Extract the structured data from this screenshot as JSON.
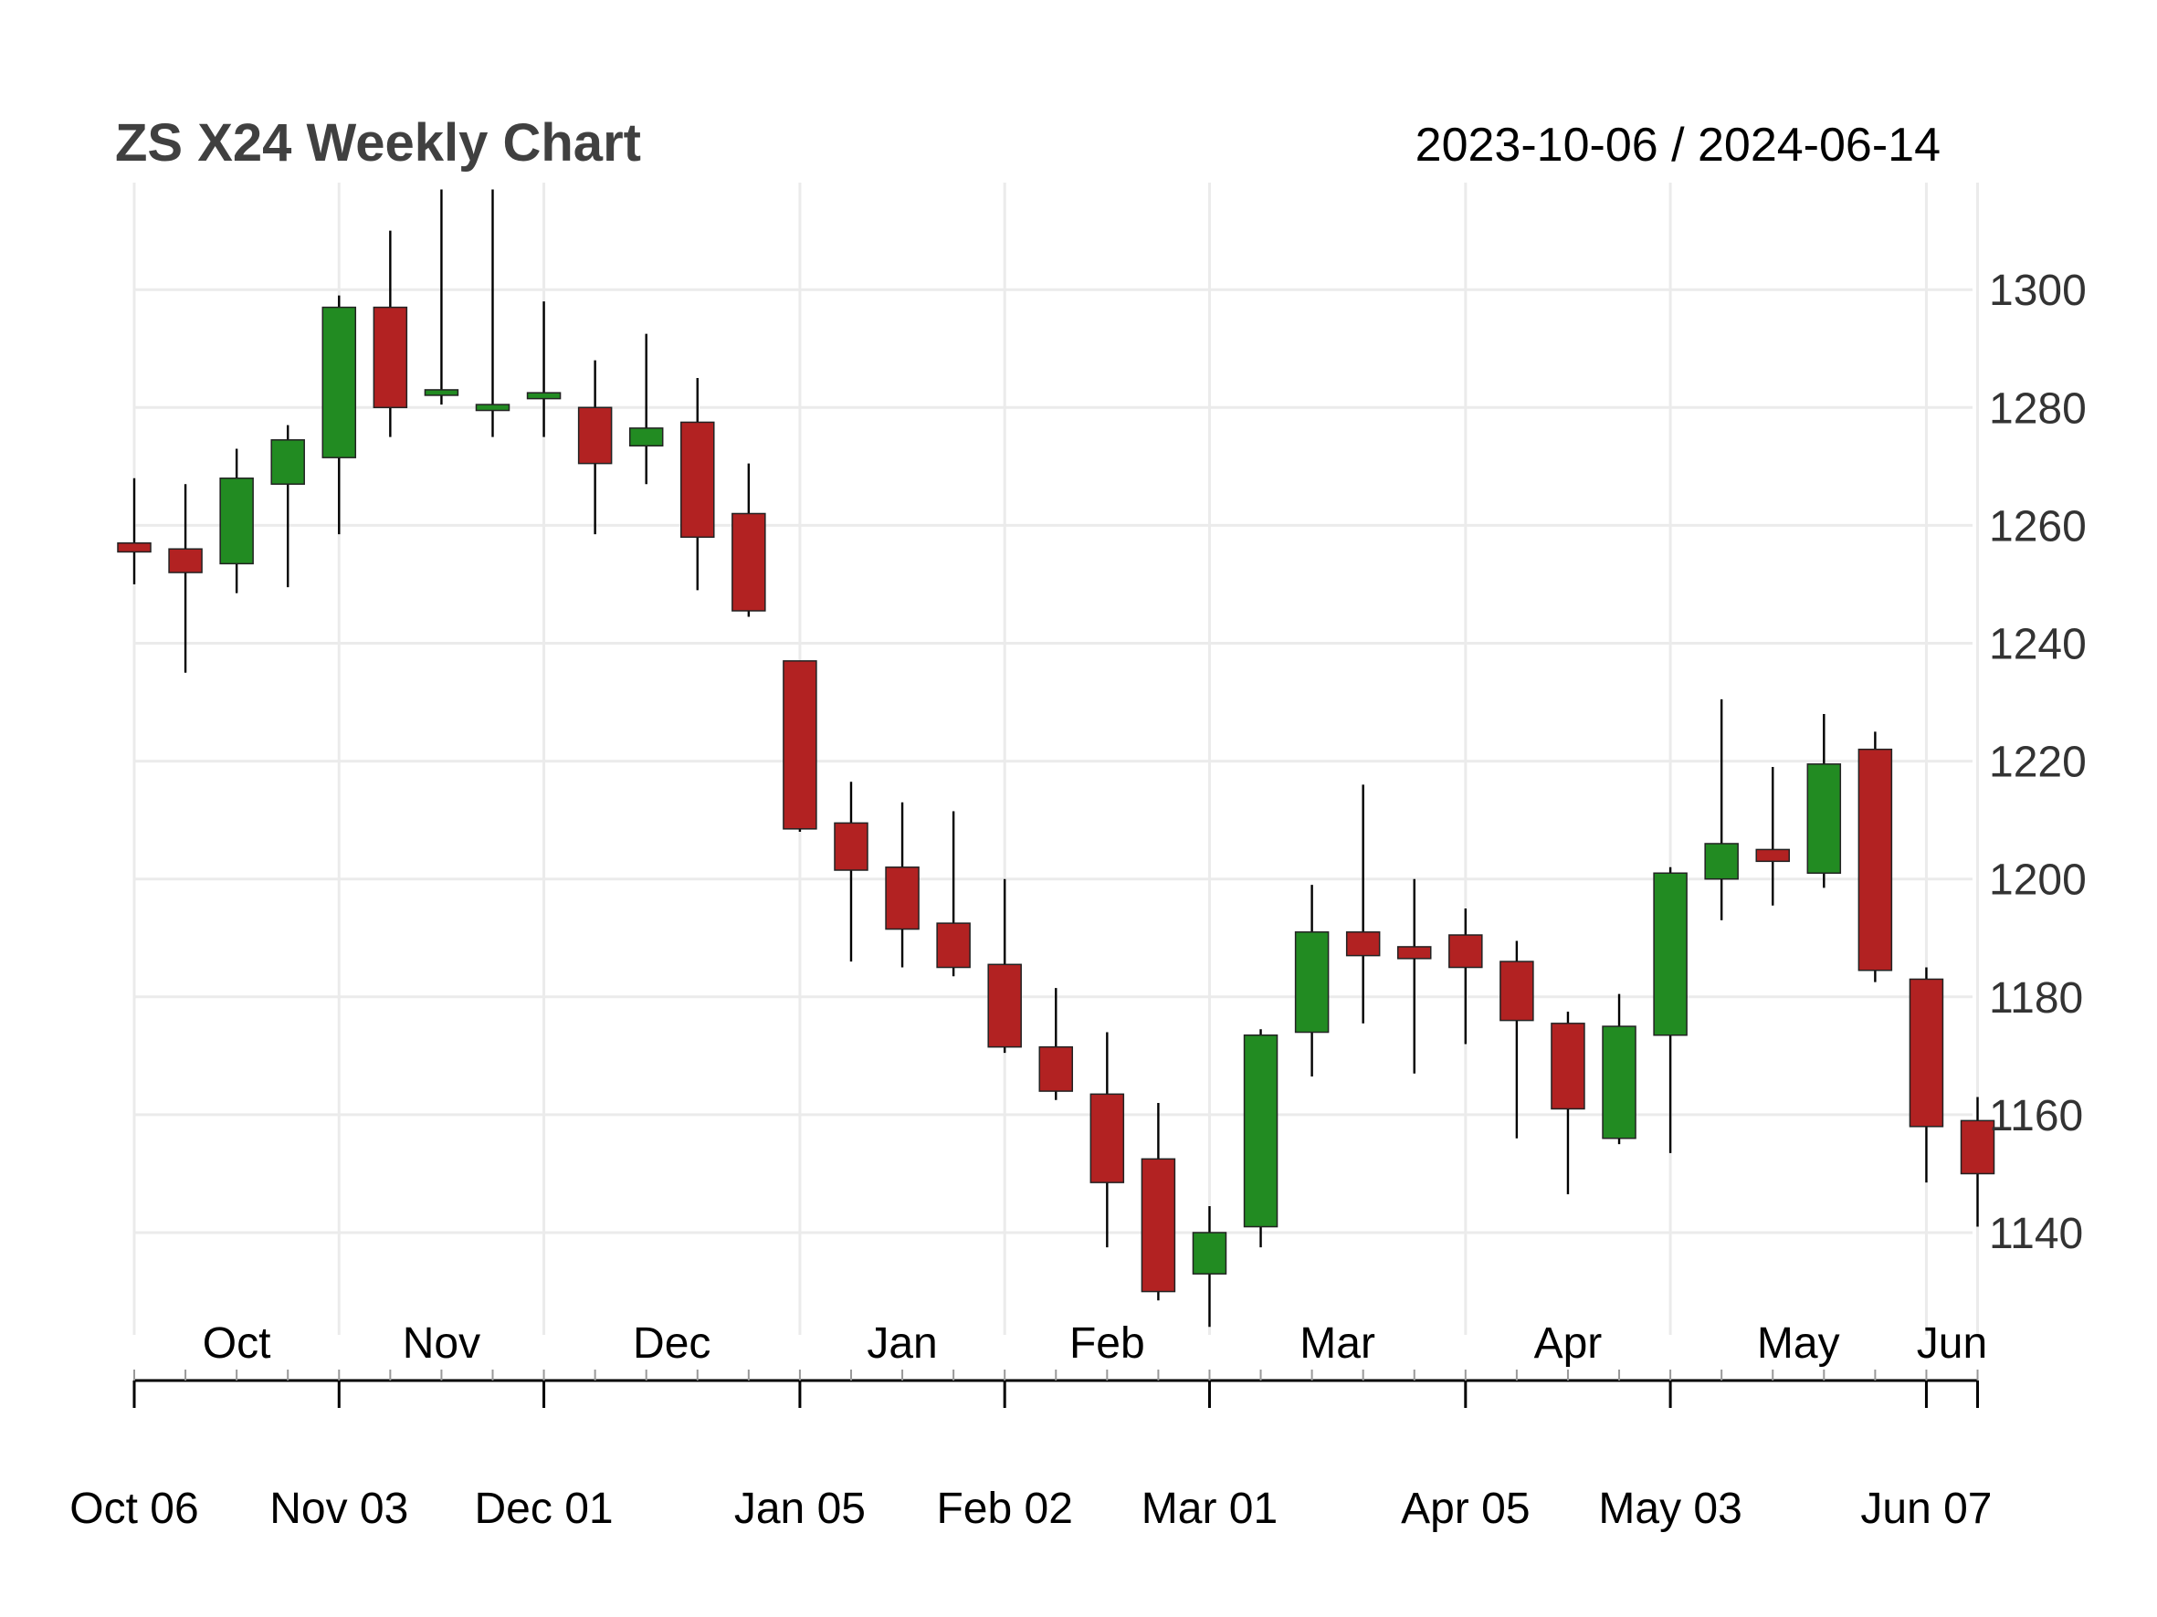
{
  "chart_data": {
    "type": "candlestick",
    "title": "ZS X24 Weekly Chart",
    "date_range": "2023-10-06 / 2024-06-14",
    "ylim": [
      1124,
      1316
    ],
    "y_ticks": [
      1140,
      1160,
      1180,
      1200,
      1220,
      1240,
      1260,
      1280,
      1300
    ],
    "grid": true,
    "colors": {
      "up": "#228B22",
      "down": "#B22222",
      "wick": "#000000",
      "grid": "#EBEBEB",
      "axis": "#000000"
    },
    "month_labels": [
      {
        "label": "Oct",
        "week": 2
      },
      {
        "label": "Nov",
        "week": 6
      },
      {
        "label": "Dec",
        "week": 10.5
      },
      {
        "label": "Jan",
        "week": 15
      },
      {
        "label": "Feb",
        "week": 19
      },
      {
        "label": "Mar",
        "week": 23.5
      },
      {
        "label": "Apr",
        "week": 28
      },
      {
        "label": "May",
        "week": 32.5
      },
      {
        "label": "Jun",
        "week": 35.5
      }
    ],
    "major_ticks": [
      {
        "label": "Oct 06",
        "week": 0
      },
      {
        "label": "Nov 03",
        "week": 4
      },
      {
        "label": "Dec 01",
        "week": 8
      },
      {
        "label": "Jan 05",
        "week": 13
      },
      {
        "label": "Feb 02",
        "week": 17
      },
      {
        "label": "Mar 01",
        "week": 21
      },
      {
        "label": "Apr 05",
        "week": 26
      },
      {
        "label": "May 03",
        "week": 30
      },
      {
        "label": "Jun 07",
        "week": 35
      }
    ],
    "candles": [
      {
        "date": "2023-10-06",
        "open": 1257,
        "high": 1268,
        "low": 1250,
        "close": 1255.5
      },
      {
        "date": "2023-10-13",
        "open": 1256,
        "high": 1267,
        "low": 1235,
        "close": 1252
      },
      {
        "date": "2023-10-20",
        "open": 1253.5,
        "high": 1273,
        "low": 1248.5,
        "close": 1268
      },
      {
        "date": "2023-10-27",
        "open": 1267,
        "high": 1277,
        "low": 1249.5,
        "close": 1274.5
      },
      {
        "date": "2023-11-03",
        "open": 1271.5,
        "high": 1299,
        "low": 1258.5,
        "close": 1297
      },
      {
        "date": "2023-11-10",
        "open": 1297,
        "high": 1310,
        "low": 1275,
        "close": 1280
      },
      {
        "date": "2023-11-17",
        "open": 1282.5,
        "high": 1317,
        "low": 1280.5,
        "close": 1283
      },
      {
        "date": "2023-11-24",
        "open": 1279.5,
        "high": 1317,
        "low": 1275,
        "close": 1280.5
      },
      {
        "date": "2023-12-01",
        "open": 1281.5,
        "high": 1298,
        "low": 1275,
        "close": 1282.5
      },
      {
        "date": "2023-12-08",
        "open": 1280,
        "high": 1288,
        "low": 1258.5,
        "close": 1270.5
      },
      {
        "date": "2023-12-15",
        "open": 1273.5,
        "high": 1292.5,
        "low": 1267,
        "close": 1276.5
      },
      {
        "date": "2023-12-22",
        "open": 1277.5,
        "high": 1285,
        "low": 1249,
        "close": 1258
      },
      {
        "date": "2023-12-29",
        "open": 1262,
        "high": 1270.5,
        "low": 1244.5,
        "close": 1245.5
      },
      {
        "date": "2024-01-05",
        "open": 1237,
        "high": 1237,
        "low": 1208,
        "close": 1208.5
      },
      {
        "date": "2024-01-12",
        "open": 1209.5,
        "high": 1216.5,
        "low": 1186,
        "close": 1201.5
      },
      {
        "date": "2024-01-19",
        "open": 1202,
        "high": 1213,
        "low": 1185,
        "close": 1191.5
      },
      {
        "date": "2024-01-26",
        "open": 1192.5,
        "high": 1211.5,
        "low": 1183.5,
        "close": 1185
      },
      {
        "date": "2024-02-02",
        "open": 1185.5,
        "high": 1200,
        "low": 1170.5,
        "close": 1171.5
      },
      {
        "date": "2024-02-09",
        "open": 1171.5,
        "high": 1181.5,
        "low": 1162.5,
        "close": 1164
      },
      {
        "date": "2024-02-16",
        "open": 1163.5,
        "high": 1174,
        "low": 1137.5,
        "close": 1148.5
      },
      {
        "date": "2024-02-23",
        "open": 1152.5,
        "high": 1162,
        "low": 1128.5,
        "close": 1130
      },
      {
        "date": "2024-03-01",
        "open": 1133,
        "high": 1144.5,
        "low": 1124,
        "close": 1140
      },
      {
        "date": "2024-03-08",
        "open": 1141,
        "high": 1174.5,
        "low": 1137.5,
        "close": 1173.5
      },
      {
        "date": "2024-03-15",
        "open": 1174,
        "high": 1199,
        "low": 1166.5,
        "close": 1191
      },
      {
        "date": "2024-03-22",
        "open": 1191,
        "high": 1216,
        "low": 1175.5,
        "close": 1187
      },
      {
        "date": "2024-03-29",
        "open": 1188.5,
        "high": 1200,
        "low": 1167,
        "close": 1186.5
      },
      {
        "date": "2024-04-05",
        "open": 1190.5,
        "high": 1195,
        "low": 1172,
        "close": 1185
      },
      {
        "date": "2024-04-12",
        "open": 1186,
        "high": 1189.5,
        "low": 1156,
        "close": 1176
      },
      {
        "date": "2024-04-19",
        "open": 1175.5,
        "high": 1177.5,
        "low": 1146.5,
        "close": 1161
      },
      {
        "date": "2024-04-26",
        "open": 1156,
        "high": 1180.5,
        "low": 1155,
        "close": 1175
      },
      {
        "date": "2024-05-03",
        "open": 1173.5,
        "high": 1202,
        "low": 1153.5,
        "close": 1201
      },
      {
        "date": "2024-05-10",
        "open": 1200,
        "high": 1230.5,
        "low": 1193,
        "close": 1206
      },
      {
        "date": "2024-05-17",
        "open": 1205,
        "high": 1219,
        "low": 1195.5,
        "close": 1203
      },
      {
        "date": "2024-05-24",
        "open": 1201,
        "high": 1228,
        "low": 1198.5,
        "close": 1219.5
      },
      {
        "date": "2024-05-31",
        "open": 1222,
        "high": 1225,
        "low": 1182.5,
        "close": 1184.5
      },
      {
        "date": "2024-06-07",
        "open": 1183,
        "high": 1185,
        "low": 1148.5,
        "close": 1158
      },
      {
        "date": "2024-06-14",
        "open": 1159,
        "high": 1163,
        "low": 1141,
        "close": 1150
      }
    ]
  }
}
